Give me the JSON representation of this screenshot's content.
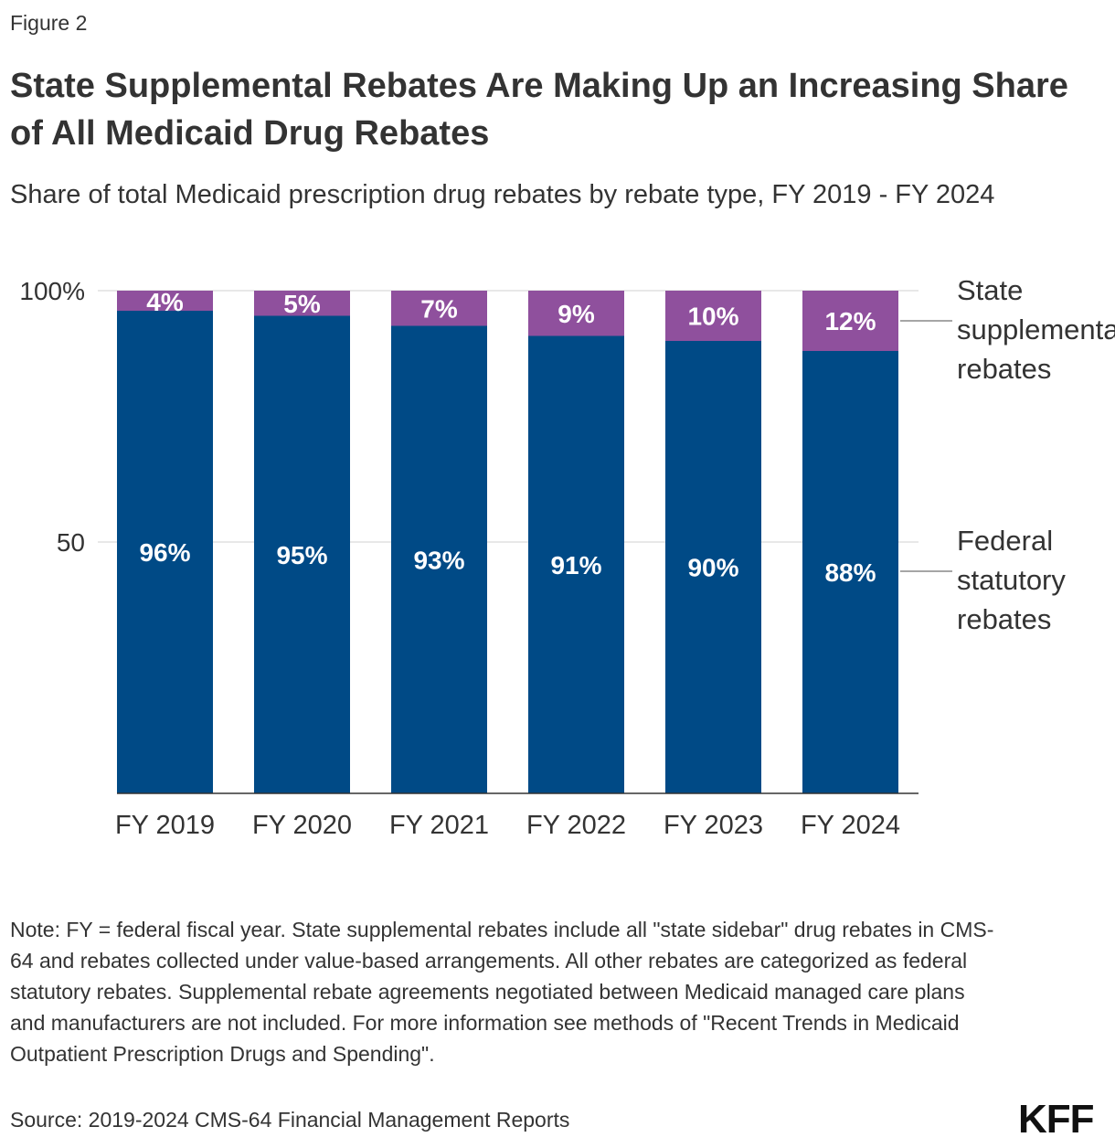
{
  "figure_label": "Figure 2",
  "title": "State Supplemental Rebates Are Making Up an Increasing Share of All Medicaid Drug Rebates",
  "subtitle": "Share of total Medicaid prescription drug rebates by rebate type, FY 2019 - FY 2024",
  "note": "Note: FY = federal fiscal year. State supplemental rebates include all \"state sidebar\" drug rebates in CMS-64 and rebates collected under value-based arrangements. All other rebates are categorized as federal statutory rebates. Supplemental rebate agreements negotiated between Medicaid managed care plans and manufacturers are not included. For more information see methods of \"Recent Trends in Medicaid Outpatient Prescription Drugs and Spending\".",
  "source": "Source: 2019-2024 CMS-64 Financial Management Reports",
  "logo": "KFF",
  "chart_data": {
    "type": "bar",
    "stacked": true,
    "categories": [
      "FY 2019",
      "FY 2020",
      "FY 2021",
      "FY 2022",
      "FY 2023",
      "FY 2024"
    ],
    "series": [
      {
        "name": "Federal statutory rebates",
        "values": [
          96,
          95,
          93,
          91,
          90,
          88
        ],
        "labels": [
          "96%",
          "95%",
          "93%",
          "91%",
          "90%",
          "88%"
        ],
        "color": "#004a86"
      },
      {
        "name": "State supplemental rebates",
        "values": [
          4,
          5,
          7,
          9,
          10,
          12
        ],
        "labels": [
          "4%",
          "5%",
          "7%",
          "9%",
          "10%",
          "12%"
        ],
        "color": "#8f509d"
      }
    ],
    "ylim": [
      0,
      100
    ],
    "yticks": [
      {
        "value": 100,
        "label": "100%"
      },
      {
        "value": 50,
        "label": "50"
      }
    ],
    "grid": true,
    "legend": "right, direct labels"
  }
}
